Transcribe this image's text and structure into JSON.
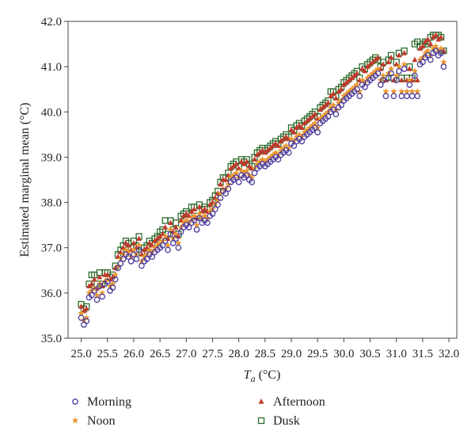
{
  "chart_data": {
    "type": "scatter",
    "xlabel_main": "T",
    "xlabel_sub": "a",
    "xlabel_unit": " (°C)",
    "ylabel": "Estimated marginal mean (°C)",
    "xlim": [
      24.75,
      32.15
    ],
    "ylim": [
      35.0,
      42.0
    ],
    "xticks": [
      25.0,
      25.5,
      26.0,
      26.5,
      27.0,
      27.5,
      28.0,
      28.5,
      29.0,
      29.5,
      30.0,
      30.5,
      31.0,
      31.5,
      32.0
    ],
    "xtick_labels": [
      "25.0",
      "25.5",
      "26.0",
      "26.5",
      "27.0",
      "27.5",
      "28.0",
      "28.5",
      "29.0",
      "29.5",
      "30.0",
      "30.5",
      "31.0",
      "31.5",
      "32.0"
    ],
    "yticks": [
      35.0,
      36.0,
      37.0,
      38.0,
      39.0,
      40.0,
      41.0,
      42.0
    ],
    "ytick_labels": [
      "35.0",
      "36.0",
      "37.0",
      "38.0",
      "39.0",
      "40.0",
      "41.0",
      "42.0"
    ],
    "x": [
      25.0,
      25.05,
      25.1,
      25.15,
      25.2,
      25.25,
      25.3,
      25.35,
      25.4,
      25.45,
      25.5,
      25.55,
      25.6,
      25.65,
      25.7,
      25.75,
      25.8,
      25.85,
      25.9,
      25.95,
      26.0,
      26.05,
      26.1,
      26.15,
      26.2,
      26.25,
      26.3,
      26.35,
      26.4,
      26.45,
      26.5,
      26.55,
      26.6,
      26.65,
      26.7,
      26.75,
      26.8,
      26.85,
      26.9,
      26.95,
      27.0,
      27.05,
      27.1,
      27.15,
      27.2,
      27.25,
      27.3,
      27.35,
      27.4,
      27.45,
      27.5,
      27.55,
      27.6,
      27.65,
      27.7,
      27.75,
      27.8,
      27.85,
      27.9,
      27.95,
      28.0,
      28.05,
      28.1,
      28.15,
      28.2,
      28.25,
      28.3,
      28.35,
      28.4,
      28.45,
      28.5,
      28.55,
      28.6,
      28.65,
      28.7,
      28.75,
      28.8,
      28.85,
      28.9,
      28.95,
      29.0,
      29.05,
      29.1,
      29.15,
      29.2,
      29.25,
      29.3,
      29.35,
      29.4,
      29.45,
      29.5,
      29.55,
      29.6,
      29.65,
      29.7,
      29.75,
      29.8,
      29.85,
      29.9,
      29.95,
      30.0,
      30.05,
      30.1,
      30.15,
      30.2,
      30.25,
      30.3,
      30.35,
      30.4,
      30.45,
      30.5,
      30.55,
      30.6,
      30.65,
      30.7,
      30.75,
      30.8,
      30.85,
      30.9,
      30.95,
      31.0,
      31.05,
      31.1,
      31.15,
      31.2,
      31.25,
      31.3,
      31.35,
      31.4,
      31.45,
      31.5,
      31.55,
      31.6,
      31.65,
      31.7,
      31.75,
      31.8,
      31.85,
      31.9
    ],
    "series": [
      {
        "name": "Morning",
        "marker": "circle",
        "color": "#4b3a9c",
        "values": [
          35.45,
          35.3,
          35.38,
          35.9,
          35.95,
          36.05,
          35.85,
          36.15,
          35.92,
          36.2,
          36.25,
          36.05,
          36.12,
          36.3,
          36.55,
          36.65,
          36.75,
          36.85,
          36.8,
          36.7,
          36.85,
          36.75,
          36.95,
          36.6,
          36.7,
          36.75,
          36.85,
          36.8,
          36.9,
          36.95,
          37.0,
          37.05,
          37.15,
          36.95,
          37.3,
          37.1,
          37.2,
          37.0,
          37.35,
          37.45,
          37.5,
          37.45,
          37.55,
          37.6,
          37.4,
          37.65,
          37.55,
          37.6,
          37.55,
          37.7,
          37.75,
          37.85,
          37.95,
          38.1,
          38.25,
          38.2,
          38.3,
          38.45,
          38.5,
          38.55,
          38.45,
          38.6,
          38.55,
          38.6,
          38.5,
          38.45,
          38.65,
          38.75,
          38.8,
          38.85,
          38.8,
          38.85,
          38.9,
          38.95,
          39.0,
          38.95,
          39.05,
          39.1,
          39.15,
          39.1,
          39.3,
          39.25,
          39.35,
          39.4,
          39.35,
          39.45,
          39.5,
          39.55,
          39.6,
          39.65,
          39.55,
          39.75,
          39.8,
          39.85,
          39.9,
          40.0,
          40.05,
          39.95,
          40.1,
          40.15,
          40.25,
          40.3,
          40.35,
          40.4,
          40.45,
          40.5,
          40.35,
          40.6,
          40.55,
          40.65,
          40.7,
          40.75,
          40.8,
          40.85,
          40.6,
          40.7,
          40.35,
          40.75,
          40.85,
          40.35,
          40.7,
          40.9,
          40.35,
          40.95,
          40.35,
          40.6,
          40.35,
          40.8,
          40.35,
          41.05,
          41.1,
          41.2,
          41.25,
          41.15,
          41.3,
          41.35,
          41.25,
          41.3,
          41.0
        ]
      },
      {
        "name": "Noon",
        "marker": "star",
        "color": "#e8962e",
        "values": [
          35.55,
          35.4,
          35.45,
          36.0,
          36.05,
          36.1,
          35.95,
          36.2,
          36.0,
          36.25,
          36.3,
          36.15,
          36.2,
          36.4,
          36.6,
          36.75,
          36.85,
          36.95,
          36.9,
          36.8,
          36.95,
          36.85,
          37.05,
          36.7,
          36.8,
          36.85,
          36.95,
          36.9,
          37.0,
          37.05,
          37.1,
          37.15,
          37.25,
          37.05,
          37.4,
          37.2,
          37.3,
          37.1,
          37.45,
          37.55,
          37.6,
          37.55,
          37.65,
          37.7,
          37.5,
          37.75,
          37.65,
          37.7,
          37.65,
          37.8,
          37.85,
          37.95,
          38.05,
          38.2,
          38.3,
          38.3,
          38.4,
          38.55,
          38.6,
          38.65,
          38.55,
          38.7,
          38.65,
          38.7,
          38.6,
          38.55,
          38.75,
          38.85,
          38.9,
          38.95,
          38.9,
          38.95,
          39.0,
          39.05,
          39.1,
          39.05,
          39.15,
          39.2,
          39.25,
          39.2,
          39.4,
          39.35,
          39.45,
          39.5,
          39.45,
          39.55,
          39.6,
          39.65,
          39.7,
          39.75,
          39.65,
          39.85,
          39.9,
          39.95,
          40.0,
          40.1,
          40.15,
          40.05,
          40.2,
          40.25,
          40.35,
          40.4,
          40.45,
          40.5,
          40.55,
          40.6,
          40.45,
          40.7,
          40.65,
          40.75,
          40.8,
          40.85,
          40.9,
          40.95,
          40.7,
          40.8,
          40.45,
          40.85,
          40.95,
          40.45,
          40.8,
          41.0,
          40.45,
          41.05,
          40.45,
          40.7,
          40.45,
          40.9,
          40.45,
          41.15,
          41.2,
          41.3,
          41.35,
          41.25,
          41.4,
          41.45,
          41.35,
          41.4,
          41.1
        ]
      },
      {
        "name": "Afternoon",
        "marker": "triangle",
        "color": "#c0392b",
        "values": [
          35.7,
          35.6,
          35.65,
          36.15,
          36.2,
          36.3,
          36.1,
          36.35,
          36.15,
          36.4,
          36.4,
          36.3,
          36.35,
          36.55,
          36.8,
          36.9,
          37.0,
          37.1,
          37.05,
          36.95,
          37.1,
          37.0,
          37.2,
          36.85,
          36.95,
          37.0,
          37.1,
          37.05,
          37.15,
          37.2,
          37.25,
          37.3,
          37.45,
          37.2,
          37.55,
          37.35,
          37.45,
          37.25,
          37.6,
          37.7,
          37.75,
          37.7,
          37.8,
          37.85,
          37.65,
          37.9,
          37.8,
          37.85,
          37.8,
          37.95,
          38.0,
          38.1,
          38.2,
          38.4,
          38.5,
          38.5,
          38.6,
          38.75,
          38.8,
          38.85,
          38.75,
          38.9,
          38.85,
          38.9,
          38.8,
          38.75,
          38.95,
          39.05,
          39.1,
          39.15,
          39.1,
          39.15,
          39.2,
          39.25,
          39.3,
          39.25,
          39.35,
          39.4,
          39.45,
          39.4,
          39.6,
          39.55,
          39.65,
          39.7,
          39.65,
          39.75,
          39.8,
          39.85,
          39.9,
          39.95,
          39.85,
          40.05,
          40.1,
          40.15,
          40.2,
          40.35,
          40.4,
          40.3,
          40.45,
          40.5,
          40.6,
          40.65,
          40.7,
          40.75,
          40.8,
          40.85,
          40.7,
          40.95,
          40.9,
          41.0,
          41.05,
          41.1,
          41.15,
          41.2,
          40.95,
          41.05,
          40.7,
          41.1,
          41.2,
          40.7,
          41.05,
          41.25,
          40.7,
          41.3,
          40.7,
          40.95,
          40.7,
          41.15,
          40.7,
          41.4,
          41.45,
          41.55,
          41.6,
          41.5,
          41.65,
          41.7,
          41.6,
          41.65,
          41.35
        ]
      },
      {
        "name": "Dusk",
        "marker": "square",
        "color": "#2e6b2e",
        "values": [
          35.75,
          35.65,
          35.7,
          36.2,
          36.4,
          36.4,
          36.2,
          36.45,
          36.2,
          36.45,
          36.45,
          36.35,
          36.4,
          36.6,
          36.85,
          36.95,
          37.05,
          37.15,
          37.1,
          37.0,
          37.15,
          37.05,
          37.25,
          36.9,
          37.0,
          37.05,
          37.15,
          37.1,
          37.2,
          37.25,
          37.35,
          37.4,
          37.6,
          37.3,
          37.6,
          37.4,
          37.55,
          37.3,
          37.7,
          37.75,
          37.8,
          37.75,
          37.9,
          37.9,
          37.7,
          37.95,
          37.85,
          37.9,
          37.85,
          38.0,
          38.05,
          38.15,
          38.25,
          38.45,
          38.55,
          38.55,
          38.65,
          38.8,
          38.85,
          38.9,
          38.8,
          38.95,
          38.9,
          38.95,
          38.85,
          38.8,
          39.0,
          39.1,
          39.15,
          39.2,
          39.15,
          39.2,
          39.25,
          39.3,
          39.35,
          39.3,
          39.4,
          39.45,
          39.5,
          39.45,
          39.65,
          39.6,
          39.7,
          39.75,
          39.7,
          39.8,
          39.85,
          39.9,
          39.95,
          40.0,
          39.9,
          40.1,
          40.15,
          40.2,
          40.25,
          40.45,
          40.45,
          40.35,
          40.5,
          40.55,
          40.65,
          40.7,
          40.75,
          40.8,
          40.85,
          40.9,
          40.75,
          41.0,
          40.95,
          41.05,
          41.1,
          41.15,
          41.2,
          41.15,
          41.0,
          41.1,
          40.75,
          41.15,
          41.25,
          40.75,
          41.1,
          41.3,
          40.75,
          41.35,
          40.75,
          41.0,
          40.75,
          41.5,
          41.55,
          41.45,
          41.5,
          41.55,
          41.5,
          41.65,
          41.7,
          41.7,
          41.7,
          41.65,
          41.35
        ]
      }
    ],
    "legend": {
      "placement": "bottom",
      "items": [
        {
          "label": "Morning",
          "series": 0
        },
        {
          "label": "Afternoon",
          "series": 2
        },
        {
          "label": "Noon",
          "series": 1
        },
        {
          "label": "Dusk",
          "series": 3
        }
      ]
    },
    "grid": false
  }
}
